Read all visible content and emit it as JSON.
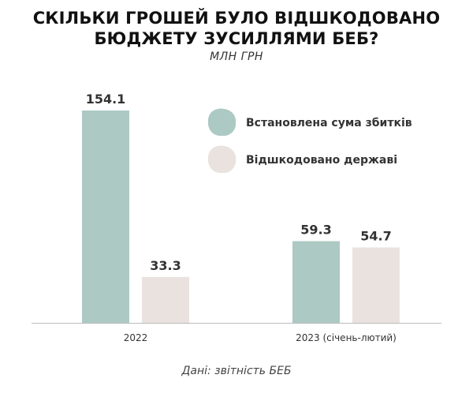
{
  "title_line1": "СКІЛЬКИ ГРОШЕЙ БУЛО ВІДШКОДОВАНО",
  "title_line2": "БЮДЖЕТУ ЗУСИЛЛЯМИ БЕБ?",
  "unit": "МЛН ГРН",
  "source": "Дані: звітність БЕБ",
  "colors": {
    "established": "#adc9c3",
    "reimbursed": "#e9e2de",
    "axis": "#bbbbbb"
  },
  "chart_data": {
    "type": "bar",
    "categories": [
      "2022",
      "2023 (січень-лютий)"
    ],
    "series": [
      {
        "name": "Встановлена сума збитків",
        "values": [
          154.1,
          59.3
        ]
      },
      {
        "name": "Відшкодовано державі",
        "values": [
          33.3,
          54.7
        ]
      }
    ],
    "value_labels": [
      [
        "154.1",
        "59.3"
      ],
      [
        "33.3",
        "54.7"
      ]
    ],
    "ylim": [
      0,
      154.1
    ],
    "grid": false,
    "legend_position": "top-right"
  }
}
